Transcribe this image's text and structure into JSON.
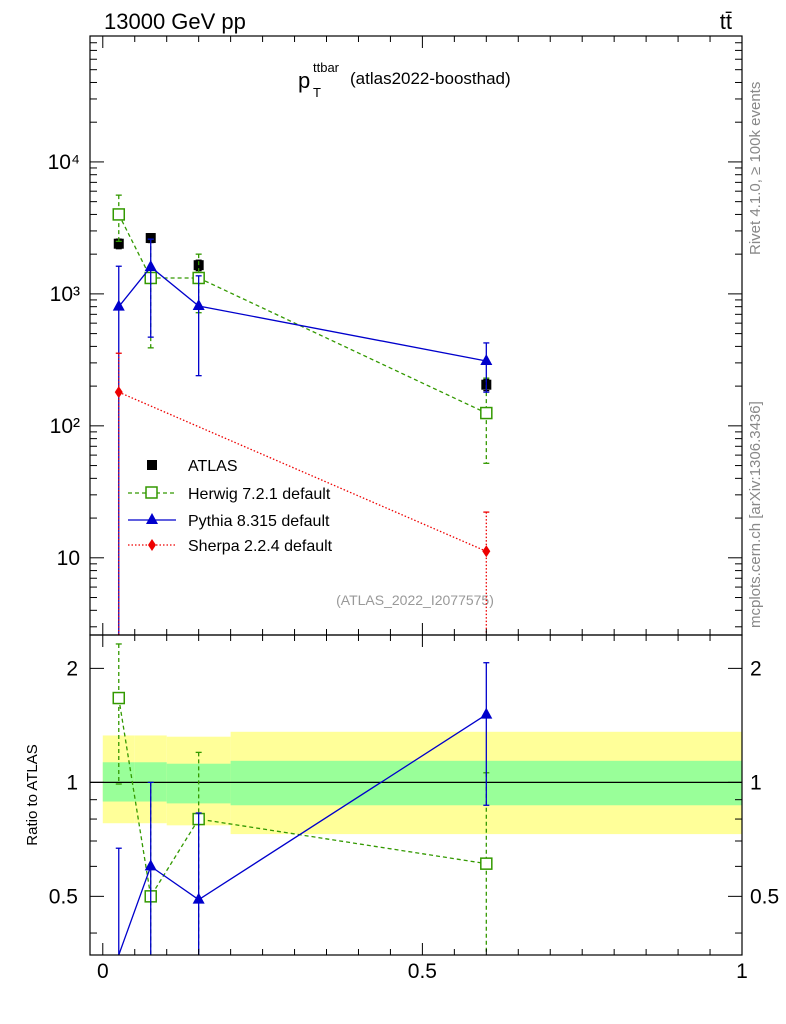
{
  "header": {
    "energy_label": "13000 GeV pp",
    "process_label": "tt̄"
  },
  "title": {
    "main": "p",
    "superscript": "ttbar",
    "subscript": "T",
    "suffix": "(atlas2022-boosthad)"
  },
  "side_labels": {
    "rivet": "Rivet 4.1.0, ≥ 100k events",
    "mcplots": "mcplots.cern.ch [arXiv:1306.3436]"
  },
  "watermark": "(ATLAS_2022_I2077575)",
  "colors": {
    "atlas": "#000000",
    "herwig": "#339900",
    "pythia": "#0000cc",
    "sherpa": "#ee0000",
    "band_inner": "#99ff99",
    "band_outer": "#ffff99"
  },
  "chart_data": [
    {
      "type": "scatter",
      "panel": "main",
      "xlim": [
        -0.02,
        1.0
      ],
      "ylim": [
        2.6,
        90000
      ],
      "yscale": "log",
      "y_tick_labels": [
        "10",
        "10²",
        "10³",
        "10⁴"
      ],
      "legend": [
        "ATLAS",
        "Herwig 7.2.1 default",
        "Pythia 8.315 default",
        "Sherpa 2.2.4 default"
      ],
      "legend_position": "center-left",
      "series": [
        {
          "name": "ATLAS",
          "style": "square-marker",
          "x": [
            0.025,
            0.075,
            0.15,
            0.6
          ],
          "values": [
            2400,
            2650,
            1650,
            205
          ],
          "err_low": [
            200,
            200,
            150,
            20
          ],
          "err_high": [
            200,
            200,
            150,
            20
          ]
        },
        {
          "name": "Herwig 7.2.1 default",
          "style": "open-square dashed",
          "x": [
            0.025,
            0.075,
            0.15,
            0.6
          ],
          "values": [
            4000,
            1320,
            1320,
            125
          ],
          "err_low": [
            1500,
            930,
            600,
            73
          ],
          "err_high": [
            1600,
            1280,
            680,
            105
          ]
        },
        {
          "name": "Pythia 8.315 default",
          "style": "triangle solid",
          "x": [
            0.025,
            0.075,
            0.15,
            0.6
          ],
          "values": [
            800,
            1600,
            810,
            310
          ],
          "err_low": [
            800,
            1130,
            570,
            130
          ],
          "err_high": [
            820,
            1000,
            560,
            115
          ]
        },
        {
          "name": "Sherpa 2.2.4 default",
          "style": "diamond dotted",
          "x": [
            0.025,
            0.6
          ],
          "values": [
            180,
            11.2
          ],
          "err_low": [
            180,
            11.2
          ],
          "err_high": [
            175,
            11
          ]
        }
      ]
    },
    {
      "type": "scatter",
      "panel": "ratio",
      "ylabel": "Ratio to ATLAS",
      "xlim": [
        -0.02,
        1.0
      ],
      "ylim": [
        0.35,
        2.45
      ],
      "yscale": "log",
      "x_tick_labels": [
        "0",
        "0.5",
        "1"
      ],
      "y_tick_labels": [
        "0.5",
        "1",
        "2"
      ],
      "band_edges": [
        0.0,
        0.05,
        0.1,
        0.2,
        1.0
      ],
      "band_inner": [
        [
          0.89,
          1.13
        ],
        [
          0.89,
          1.13
        ],
        [
          0.88,
          1.12
        ],
        [
          0.87,
          1.14
        ]
      ],
      "band_outer": [
        [
          0.78,
          1.33
        ],
        [
          0.78,
          1.33
        ],
        [
          0.77,
          1.32
        ],
        [
          0.73,
          1.36
        ]
      ],
      "series": [
        {
          "name": "Herwig 7.2.1 default",
          "x": [
            0.025,
            0.075,
            0.15,
            0.6
          ],
          "values": [
            1.67,
            0.5,
            0.8,
            0.61
          ],
          "err_low": [
            0.68,
            0.2,
            0.45,
            0.36
          ],
          "err_high": [
            0.65,
            0.5,
            0.4,
            0.45
          ]
        },
        {
          "name": "Pythia 8.315 default",
          "x": [
            0.025,
            0.075,
            0.15,
            0.6
          ],
          "values": [
            0.33,
            0.6,
            0.49,
            1.51
          ],
          "err_low": [
            0.33,
            0.3,
            0.35,
            0.64
          ],
          "err_high": [
            0.34,
            0.4,
            0.34,
            0.56
          ]
        }
      ]
    }
  ]
}
